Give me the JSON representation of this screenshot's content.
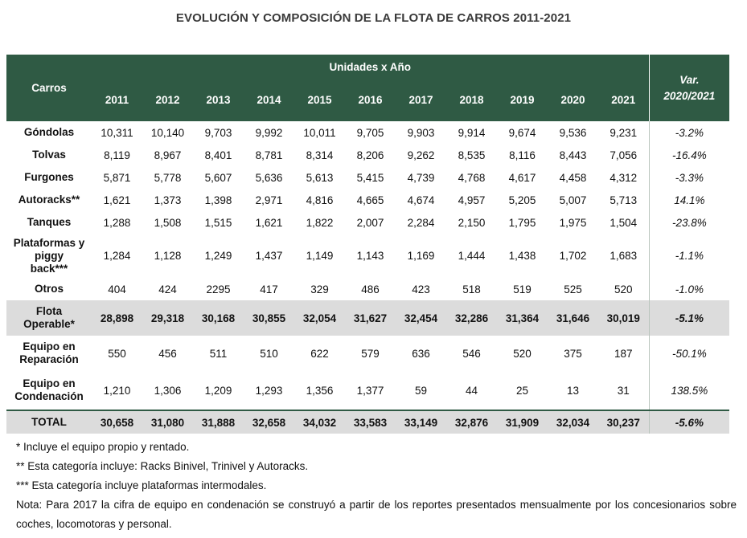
{
  "title": "EVOLUCIÓN Y COMPOSICIÓN DE LA FLOTA DE CARROS 2011-2021",
  "table": {
    "col_carros": "Carros",
    "col_group": "Unidades x Año",
    "years": [
      "2011",
      "2012",
      "2013",
      "2014",
      "2015",
      "2016",
      "2017",
      "2018",
      "2019",
      "2020",
      "2021"
    ],
    "col_var": [
      "Var.",
      "2020/2021"
    ],
    "rows": [
      {
        "label": [
          "Góndolas"
        ],
        "values": [
          "10,311",
          "10,140",
          "9,703",
          "9,992",
          "10,011",
          "9,705",
          "9,903",
          "9,914",
          "9,674",
          "9,536",
          "9,231"
        ],
        "var": "-3.2%",
        "style": "normal",
        "size": "main"
      },
      {
        "label": [
          "Tolvas"
        ],
        "values": [
          "8,119",
          "8,967",
          "8,401",
          "8,781",
          "8,314",
          "8,206",
          "9,262",
          "8,535",
          "8,116",
          "8,443",
          "7,056"
        ],
        "var": "-16.4%",
        "style": "normal",
        "size": "main"
      },
      {
        "label": [
          "Furgones"
        ],
        "values": [
          "5,871",
          "5,778",
          "5,607",
          "5,636",
          "5,613",
          "5,415",
          "4,739",
          "4,768",
          "4,617",
          "4,458",
          "4,312"
        ],
        "var": "-3.3%",
        "style": "normal",
        "size": "main"
      },
      {
        "label": [
          "Autoracks**"
        ],
        "values": [
          "1,621",
          "1,373",
          "1,398",
          "2,971",
          "4,816",
          "4,665",
          "4,674",
          "4,957",
          "5,205",
          "5,007",
          "5,713"
        ],
        "var": "14.1%",
        "style": "normal",
        "size": "main"
      },
      {
        "label": [
          "Tanques"
        ],
        "values": [
          "1,288",
          "1,508",
          "1,515",
          "1,621",
          "1,822",
          "2,007",
          "2,284",
          "2,150",
          "1,795",
          "1,975",
          "1,504"
        ],
        "var": "-23.8%",
        "style": "normal",
        "size": "main"
      },
      {
        "label": [
          "Plataformas y",
          "piggy",
          "back***"
        ],
        "values": [
          "1,284",
          "1,128",
          "1,249",
          "1,437",
          "1,149",
          "1,143",
          "1,169",
          "1,444",
          "1,438",
          "1,702",
          "1,683"
        ],
        "var": "-1.1%",
        "style": "normal",
        "size": "tall"
      },
      {
        "label": [
          "Otros"
        ],
        "values": [
          "404",
          "424",
          "2295",
          "417",
          "329",
          "486",
          "423",
          "518",
          "519",
          "525",
          "520"
        ],
        "var": "-1.0%",
        "style": "normal",
        "size": "main"
      },
      {
        "label": [
          "Flota",
          "Operable*"
        ],
        "values": [
          "28,898",
          "29,318",
          "30,168",
          "30,855",
          "32,054",
          "31,627",
          "32,454",
          "32,286",
          "31,364",
          "31,646",
          "30,019"
        ],
        "var": "-5.1%",
        "style": "shade",
        "size": "two"
      },
      {
        "label": [
          "Equipo en",
          "Reparación"
        ],
        "values": [
          "550",
          "456",
          "511",
          "510",
          "622",
          "579",
          "636",
          "546",
          "520",
          "375",
          "187"
        ],
        "var": "-50.1%",
        "style": "normal",
        "size": "two"
      },
      {
        "label": [
          "Equipo en",
          "Condenación"
        ],
        "values": [
          "1,210",
          "1,306",
          "1,209",
          "1,293",
          "1,356",
          "1,377",
          "59",
          "44",
          "25",
          "13",
          "31"
        ],
        "var": "138.5%",
        "style": "normal",
        "size": "three"
      },
      {
        "label": [
          "TOTAL"
        ],
        "values": [
          "30,658",
          "31,080",
          "31,888",
          "32,658",
          "34,032",
          "33,583",
          "33,149",
          "32,876",
          "31,909",
          "32,034",
          "30,237"
        ],
        "var": "-5.6%",
        "style": "total",
        "size": "main"
      }
    ]
  },
  "notes": [
    "* Incluye el equipo propio y rentado.",
    "** Esta categoría incluye: Racks Binivel, Trinivel y Autoracks.",
    "*** Esta categoría incluye plataformas intermodales.",
    "Nota: Para 2017 la cifra de equipo en condenación se construyó a partir de los reportes presentados mensualmente por los concesionarios sobre coches, locomotoras y personal."
  ]
}
